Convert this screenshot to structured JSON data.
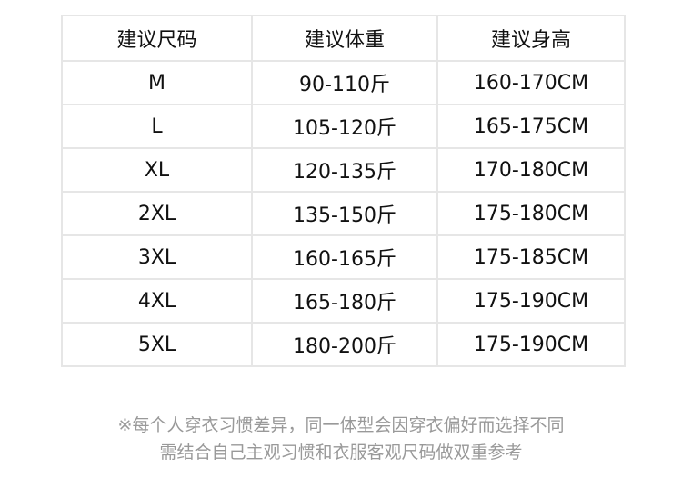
{
  "table": {
    "headers": [
      "建议尺码",
      "建议体重",
      "建议身高"
    ],
    "rows": [
      [
        "M",
        "90-110斤",
        "160-170CM"
      ],
      [
        "L",
        "105-120斤",
        "165-175CM"
      ],
      [
        "XL",
        "120-135斤",
        "170-180CM"
      ],
      [
        "2XL",
        "135-150斤",
        "175-180CM"
      ],
      [
        "3XL",
        "160-165斤",
        "175-185CM"
      ],
      [
        "4XL",
        "165-180斤",
        "175-190CM"
      ],
      [
        "5XL",
        "180-200斤",
        "175-190CM"
      ]
    ]
  },
  "note": {
    "line1": "※每个人穿衣习惯差异，同一体型会因穿衣偏好而选择不同",
    "line2": "需结合自己主观习惯和衣服客观尺码做双重参考"
  }
}
